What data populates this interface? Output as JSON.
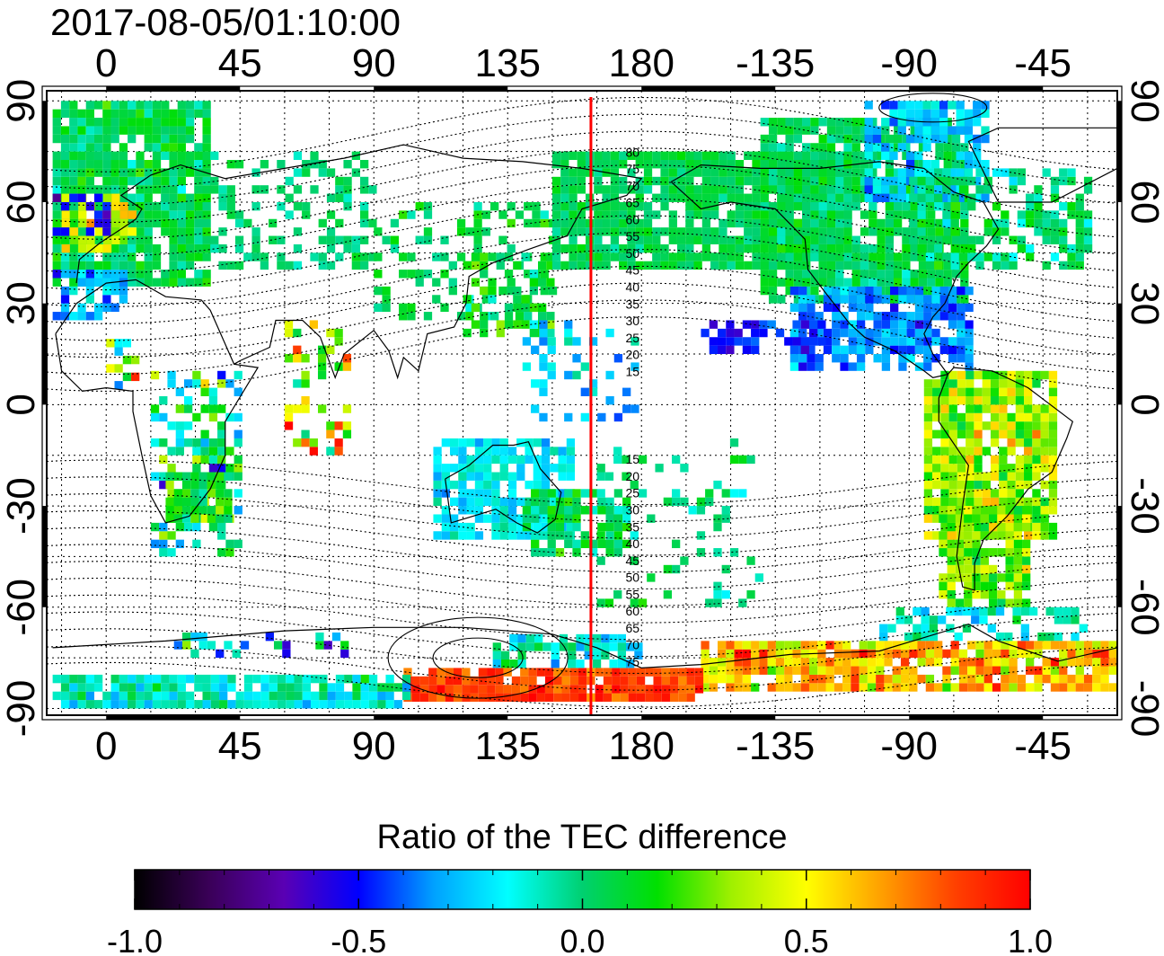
{
  "title": "2017-08-05/01:10:00",
  "map": {
    "lon_ticks_top": [
      "0",
      "45",
      "90",
      "135",
      "180",
      "-135",
      "-90",
      "-45"
    ],
    "lon_ticks_bottom": [
      "0",
      "45",
      "90",
      "135",
      "180",
      "-135",
      "-90",
      "-45"
    ],
    "lat_ticks_left": [
      "90",
      "60",
      "30",
      "0",
      "-30",
      "-60",
      "-90"
    ],
    "lat_ticks_right": [
      "90",
      "60",
      "30",
      "0",
      "-30",
      "-60",
      "-90"
    ],
    "lon_range": [
      -20,
      340
    ],
    "lat_range": [
      -92,
      93
    ],
    "grid": "dotted 15 deg",
    "terminator_longitude": 163,
    "terminator_color": "#ff0000",
    "contour_labels": [
      "80",
      "75",
      "70",
      "65",
      "60",
      "55",
      "50",
      "45",
      "40",
      "35",
      "30",
      "25",
      "20",
      "15",
      "15",
      "20",
      "25",
      "30",
      "35",
      "40",
      "45",
      "50",
      "55",
      "60",
      "65",
      "70",
      "75"
    ],
    "contour_label_lats": [
      80,
      75,
      70,
      65,
      60,
      55,
      50,
      45,
      40,
      35,
      30,
      25,
      20,
      15,
      -15,
      -20,
      -25,
      -30,
      -35,
      -40,
      -45,
      -50,
      -55,
      -60,
      -65,
      -70,
      -75
    ]
  },
  "colorbar": {
    "title": "Ratio of the TEC difference",
    "ticks": [
      "-1.0",
      "-0.5",
      "0.0",
      "0.5",
      "1.0"
    ],
    "range": [
      -1.0,
      1.0
    ],
    "colors": [
      "#000000",
      "#3a0058",
      "#5a00b4",
      "#0000ff",
      "#00a0ff",
      "#00ffff",
      "#00d070",
      "#00e000",
      "#a0f000",
      "#ffff00",
      "#ffa000",
      "#ff4000",
      "#ff0000"
    ]
  }
}
